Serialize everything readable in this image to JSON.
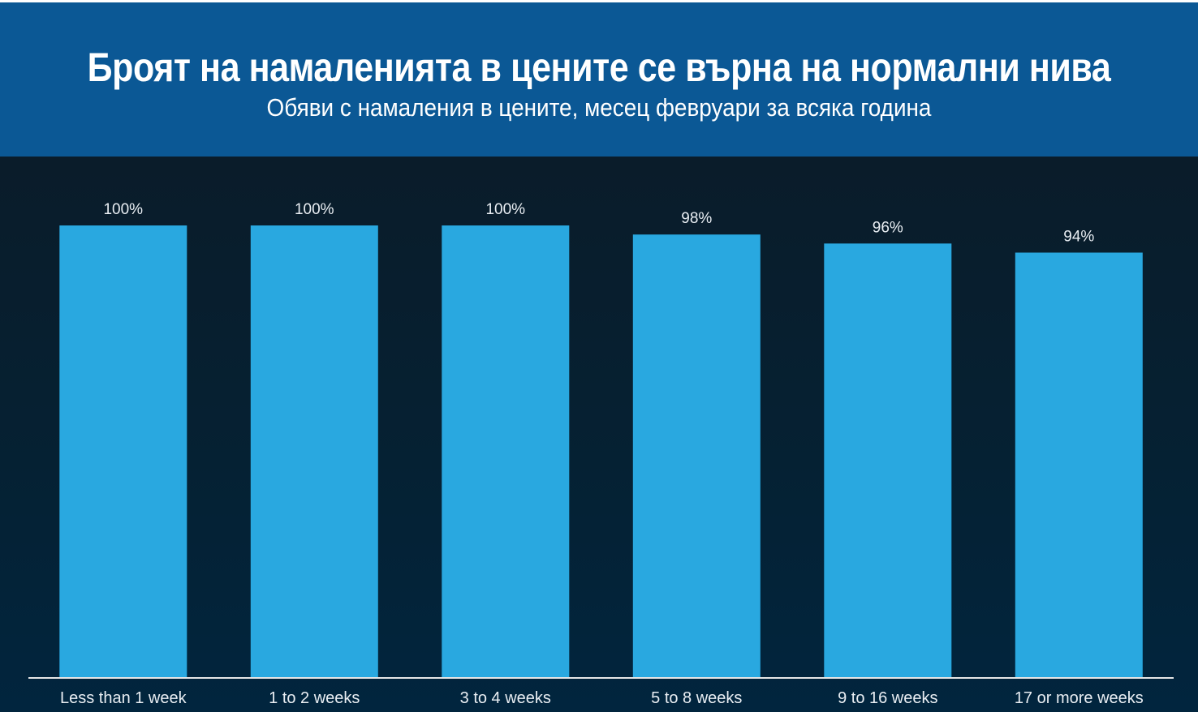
{
  "header": {
    "title": "Броят на намаленията в цените се върна на нормални нива",
    "subtitle": "Обяви с намаления в цените, месец февруари за всяка година"
  },
  "colors": {
    "header_bg": "#0b5895",
    "bar": "#29a8e0",
    "text": "#e9eef3",
    "axis": "#e6e6e6"
  },
  "chart_data": {
    "type": "bar",
    "title": "Броят на намаленията в цените се върна на нормални нива",
    "subtitle": "Обяви с намаления в цените, месец февруари за всяка година",
    "xlabel": "",
    "ylabel": "",
    "categories": [
      "Less than 1 week",
      "1 to 2 weeks",
      "3 to 4 weeks",
      "5 to 8 weeks",
      "9 to 16 weeks",
      "17 or more weeks"
    ],
    "values": [
      100,
      100,
      100,
      98,
      96,
      94
    ],
    "data_labels": [
      "100%",
      "100%",
      "100%",
      "98%",
      "96%",
      "94%"
    ],
    "ylim": [
      0,
      100
    ],
    "grid": false,
    "legend": "none"
  }
}
